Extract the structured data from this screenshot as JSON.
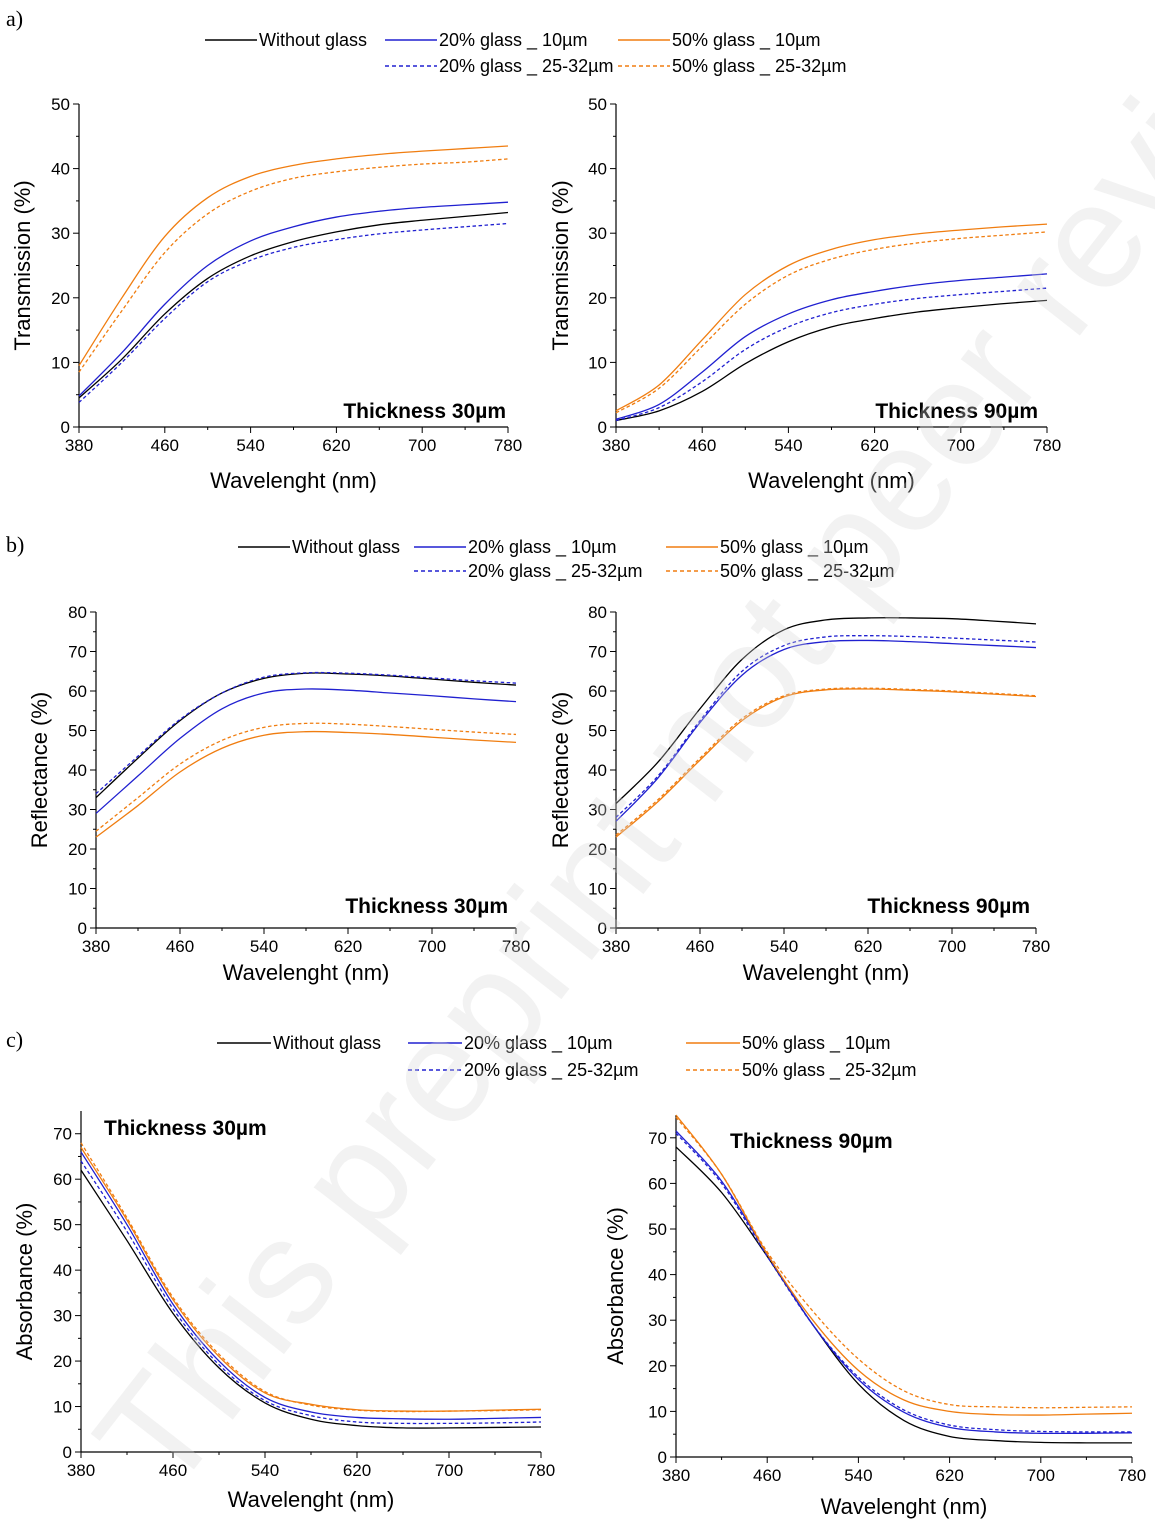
{
  "figure": {
    "panel_labels": [
      "a)",
      "b)",
      "c)"
    ],
    "watermark": "This preprint not peer reviewed"
  },
  "legend": {
    "entries": [
      {
        "label": "Without glass",
        "color": "#000000",
        "dash": "solid"
      },
      {
        "label": "20% glass _ 10µm",
        "color": "#2020d0",
        "dash": "solid"
      },
      {
        "label": "50% glass _ 10µm",
        "color": "#f07d10",
        "dash": "solid"
      },
      {
        "label": "20% glass _ 25-32µm",
        "color": "#2020d0",
        "dash": "dashed"
      },
      {
        "label": "50% glass _ 25-32µm",
        "color": "#f07d10",
        "dash": "dashed"
      }
    ]
  },
  "chart_data": [
    {
      "type": "line",
      "panel": "a)",
      "annotation": "Thickness 30µm",
      "xlabel": "Wavelenght  (nm)",
      "ylabel": "Transmission  (%)",
      "xlim": [
        380,
        780
      ],
      "ylim": [
        0,
        50
      ],
      "xticks": [
        380,
        460,
        540,
        620,
        700,
        780
      ],
      "yticks": [
        0,
        10,
        20,
        30,
        40,
        50
      ],
      "x": [
        380,
        420,
        460,
        500,
        540,
        580,
        620,
        660,
        700,
        740,
        780
      ],
      "series": [
        {
          "name": "Without glass",
          "values": [
            4.5,
            10.5,
            17.5,
            23.0,
            26.5,
            28.7,
            30.2,
            31.3,
            32.0,
            32.6,
            33.2
          ]
        },
        {
          "name": "20% glass _ 10µm",
          "values": [
            4.8,
            11.5,
            19.0,
            25.0,
            28.8,
            31.0,
            32.5,
            33.4,
            34.0,
            34.4,
            34.8
          ]
        },
        {
          "name": "50% glass _ 10µm",
          "values": [
            9.5,
            20.0,
            29.5,
            35.5,
            38.8,
            40.5,
            41.5,
            42.2,
            42.7,
            43.1,
            43.5
          ]
        },
        {
          "name": "20% glass _ 25-32µm",
          "values": [
            3.8,
            10.0,
            16.8,
            22.5,
            25.8,
            27.8,
            29.0,
            29.9,
            30.5,
            31.0,
            31.5
          ]
        },
        {
          "name": "50% glass _ 25-32µm",
          "values": [
            8.5,
            18.0,
            27.0,
            33.0,
            36.5,
            38.5,
            39.5,
            40.2,
            40.7,
            41.0,
            41.5
          ]
        }
      ]
    },
    {
      "type": "line",
      "panel": "a)",
      "annotation": "Thickness 90µm",
      "xlabel": "Wavelenght  (nm)",
      "ylabel": "Transmission  (%)",
      "xlim": [
        380,
        780
      ],
      "ylim": [
        0,
        50
      ],
      "xticks": [
        380,
        460,
        540,
        620,
        700,
        780
      ],
      "yticks": [
        0,
        10,
        20,
        30,
        40,
        50
      ],
      "x": [
        380,
        420,
        460,
        500,
        540,
        580,
        620,
        660,
        700,
        740,
        780
      ],
      "series": [
        {
          "name": "Without glass",
          "values": [
            1.0,
            2.5,
            5.5,
            9.8,
            13.2,
            15.5,
            16.8,
            17.8,
            18.5,
            19.1,
            19.6
          ]
        },
        {
          "name": "20% glass _ 10µm",
          "values": [
            1.2,
            3.5,
            8.5,
            14.0,
            17.5,
            19.7,
            21.0,
            22.0,
            22.7,
            23.2,
            23.7
          ]
        },
        {
          "name": "50% glass _ 10µm",
          "values": [
            2.5,
            6.5,
            13.5,
            20.5,
            25.0,
            27.5,
            29.0,
            29.9,
            30.5,
            31.0,
            31.4
          ]
        },
        {
          "name": "20% glass _ 25-32µm",
          "values": [
            1.0,
            3.0,
            7.0,
            12.0,
            15.5,
            17.7,
            19.0,
            19.9,
            20.5,
            21.0,
            21.5
          ]
        },
        {
          "name": "50% glass _ 25-32µm",
          "values": [
            2.2,
            6.0,
            12.5,
            19.0,
            23.5,
            26.0,
            27.5,
            28.5,
            29.2,
            29.7,
            30.2
          ]
        }
      ]
    },
    {
      "type": "line",
      "panel": "b)",
      "annotation": "Thickness 30µm",
      "xlabel": "Wavelenght  (nm)",
      "ylabel": "Reflectance  (%)",
      "xlim": [
        380,
        780
      ],
      "ylim": [
        0,
        80
      ],
      "xticks": [
        380,
        460,
        540,
        620,
        700,
        780
      ],
      "yticks": [
        0,
        10,
        20,
        30,
        40,
        50,
        60,
        70,
        80
      ],
      "x": [
        380,
        420,
        460,
        500,
        540,
        580,
        620,
        660,
        700,
        740,
        780
      ],
      "series": [
        {
          "name": "Without glass",
          "values": [
            33.0,
            43.0,
            52.5,
            59.5,
            63.2,
            64.5,
            64.3,
            63.8,
            63.0,
            62.2,
            61.5
          ]
        },
        {
          "name": "20% glass _ 10µm",
          "values": [
            29.0,
            38.5,
            48.0,
            55.5,
            59.5,
            60.5,
            60.2,
            59.5,
            58.8,
            58.0,
            57.3
          ]
        },
        {
          "name": "50% glass _ 10µm",
          "values": [
            23.0,
            31.0,
            39.5,
            45.5,
            48.8,
            49.7,
            49.5,
            49.0,
            48.3,
            47.6,
            47.0
          ]
        },
        {
          "name": "20% glass _ 25-32µm",
          "values": [
            34.0,
            43.5,
            52.8,
            59.5,
            63.5,
            64.6,
            64.5,
            64.0,
            63.3,
            62.6,
            62.0
          ]
        },
        {
          "name": "50% glass _ 25-32µm",
          "values": [
            24.5,
            33.0,
            41.5,
            47.5,
            50.8,
            51.8,
            51.6,
            51.0,
            50.3,
            49.6,
            49.0
          ]
        }
      ]
    },
    {
      "type": "line",
      "panel": "b)",
      "annotation": "Thickness 90µm",
      "xlabel": "Wavelenght  (nm)",
      "ylabel": "Reflectance  (%)",
      "xlim": [
        380,
        780
      ],
      "ylim": [
        0,
        80
      ],
      "xticks": [
        380,
        460,
        540,
        620,
        700,
        780
      ],
      "yticks": [
        0,
        10,
        20,
        30,
        40,
        50,
        60,
        70,
        80
      ],
      "x": [
        380,
        420,
        460,
        500,
        540,
        580,
        620,
        660,
        700,
        740,
        780
      ],
      "series": [
        {
          "name": "Without glass",
          "values": [
            31.5,
            42.0,
            55.5,
            68.0,
            75.5,
            78.0,
            78.5,
            78.5,
            78.3,
            77.7,
            77.0
          ]
        },
        {
          "name": "20% glass _ 10µm",
          "values": [
            27.0,
            38.0,
            52.0,
            64.0,
            70.5,
            72.5,
            72.8,
            72.5,
            72.0,
            71.5,
            71.0
          ]
        },
        {
          "name": "50% glass _ 10µm",
          "values": [
            23.0,
            32.0,
            42.5,
            52.5,
            58.5,
            60.3,
            60.5,
            60.2,
            59.8,
            59.2,
            58.6
          ]
        },
        {
          "name": "20% glass _ 25-32µm",
          "values": [
            28.0,
            38.5,
            52.5,
            65.0,
            71.5,
            73.7,
            74.0,
            73.8,
            73.4,
            72.9,
            72.4
          ]
        },
        {
          "name": "50% glass _ 25-32µm",
          "values": [
            23.5,
            32.5,
            43.0,
            53.0,
            58.8,
            60.5,
            60.7,
            60.4,
            60.0,
            59.4,
            58.8
          ]
        }
      ]
    },
    {
      "type": "line",
      "panel": "c)",
      "annotation": "Thickness 30µm",
      "xlabel": "Wavelenght  (nm)",
      "ylabel": "Absorbance  (%)",
      "xlim": [
        380,
        780
      ],
      "ylim": [
        0,
        75
      ],
      "xticks": [
        380,
        460,
        540,
        620,
        700,
        780
      ],
      "yticks": [
        0,
        10,
        20,
        30,
        40,
        50,
        60,
        70
      ],
      "x": [
        380,
        420,
        460,
        500,
        540,
        580,
        620,
        660,
        700,
        740,
        780
      ],
      "series": [
        {
          "name": "Without glass",
          "values": [
            62.0,
            46.5,
            30.5,
            18.5,
            10.8,
            7.2,
            5.8,
            5.3,
            5.3,
            5.4,
            5.5
          ]
        },
        {
          "name": "20% glass _ 10µm",
          "values": [
            66.0,
            50.0,
            32.5,
            20.0,
            12.0,
            8.8,
            7.6,
            7.3,
            7.2,
            7.4,
            7.6
          ]
        },
        {
          "name": "50% glass _ 10µm",
          "values": [
            67.0,
            51.0,
            33.5,
            21.0,
            13.0,
            10.5,
            9.3,
            9.0,
            9.0,
            9.2,
            9.4
          ]
        },
        {
          "name": "20% glass _ 25-32µm",
          "values": [
            64.0,
            48.5,
            31.5,
            19.2,
            11.3,
            8.0,
            6.6,
            6.3,
            6.3,
            6.4,
            6.6
          ]
        },
        {
          "name": "50% glass _ 25-32µm",
          "values": [
            68.0,
            51.5,
            34.0,
            21.5,
            13.3,
            10.3,
            9.2,
            8.9,
            9.0,
            9.1,
            9.3
          ]
        }
      ]
    },
    {
      "type": "line",
      "panel": "c)",
      "annotation": "Thickness 90µm",
      "xlabel": "Wavelenght  (nm)",
      "ylabel": "Absorbance  (%)",
      "xlim": [
        380,
        780
      ],
      "ylim": [
        0,
        75
      ],
      "xticks": [
        380,
        460,
        540,
        620,
        700,
        780
      ],
      "yticks": [
        0,
        10,
        20,
        30,
        40,
        50,
        60,
        70
      ],
      "x": [
        380,
        420,
        460,
        500,
        540,
        580,
        620,
        660,
        700,
        740,
        780
      ],
      "series": [
        {
          "name": "Without glass",
          "values": [
            68.0,
            58.0,
            44.0,
            29.0,
            16.0,
            8.0,
            4.5,
            3.6,
            3.2,
            3.1,
            3.1
          ]
        },
        {
          "name": "20% glass _ 10µm",
          "values": [
            71.5,
            60.5,
            44.5,
            29.0,
            17.0,
            9.8,
            6.5,
            5.5,
            5.2,
            5.2,
            5.3
          ]
        },
        {
          "name": "50% glass _ 10µm",
          "values": [
            75.0,
            62.0,
            44.5,
            30.0,
            19.0,
            12.5,
            10.0,
            9.3,
            9.2,
            9.4,
            9.6
          ]
        },
        {
          "name": "20% glass _ 25-32µm",
          "values": [
            71.0,
            60.0,
            44.0,
            29.0,
            17.5,
            10.3,
            7.0,
            6.0,
            5.6,
            5.5,
            5.5
          ]
        },
        {
          "name": "50% glass _ 25-32µm",
          "values": [
            74.5,
            62.0,
            45.0,
            32.0,
            21.5,
            14.5,
            11.5,
            11.0,
            10.8,
            10.9,
            11.0
          ]
        }
      ]
    }
  ]
}
